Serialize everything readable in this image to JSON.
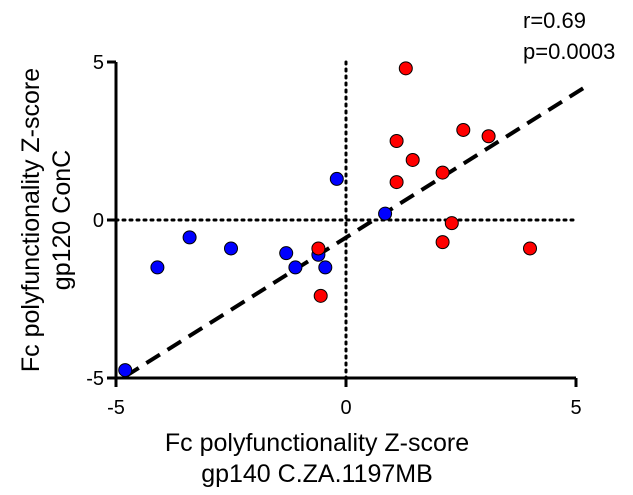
{
  "chart_data": {
    "type": "scatter",
    "xlabel_lines": [
      "Fc polyfunctionality Z-score",
      "gp140 C.ZA.1197MB"
    ],
    "ylabel_lines": [
      "Fc polyfunctionality Z-score",
      "gp120 ConC"
    ],
    "xlim": [
      -5,
      5
    ],
    "ylim": [
      -5,
      5
    ],
    "x_ticks": [
      -5,
      0,
      5
    ],
    "y_ticks": [
      -5,
      0,
      5
    ],
    "x_tick_labels": [
      "-5",
      "0",
      "5"
    ],
    "y_tick_labels": [
      "-5",
      "0",
      "5"
    ],
    "annotations": [
      "r=0.69",
      "p=0.0003"
    ],
    "reference_lines": {
      "x": 0,
      "y": 0,
      "style": "dotted"
    },
    "fit_line": {
      "style": "dashed",
      "points": [
        [
          -4.8,
          -4.95
        ],
        [
          5.3,
          4.3
        ]
      ]
    },
    "grid": false,
    "series": [
      {
        "color": "#0000ff",
        "points": [
          [
            -4.8,
            -4.75
          ],
          [
            -4.1,
            -1.5
          ],
          [
            -3.4,
            -0.55
          ],
          [
            -2.5,
            -0.9
          ],
          [
            -1.3,
            -1.05
          ],
          [
            -1.1,
            -1.5
          ],
          [
            -0.6,
            -1.1
          ],
          [
            -0.45,
            -1.5
          ],
          [
            -0.2,
            1.3
          ],
          [
            0.85,
            0.2
          ]
        ]
      },
      {
        "color": "#ff0000",
        "points": [
          [
            -0.6,
            -0.9
          ],
          [
            -0.55,
            -2.4
          ],
          [
            1.1,
            1.2
          ],
          [
            1.1,
            2.5
          ],
          [
            1.3,
            4.8
          ],
          [
            1.45,
            1.9
          ],
          [
            2.1,
            1.5
          ],
          [
            2.1,
            -0.7
          ],
          [
            2.3,
            -0.1
          ],
          [
            2.55,
            2.85
          ],
          [
            3.1,
            2.65
          ],
          [
            4.0,
            -0.9
          ]
        ]
      }
    ]
  }
}
